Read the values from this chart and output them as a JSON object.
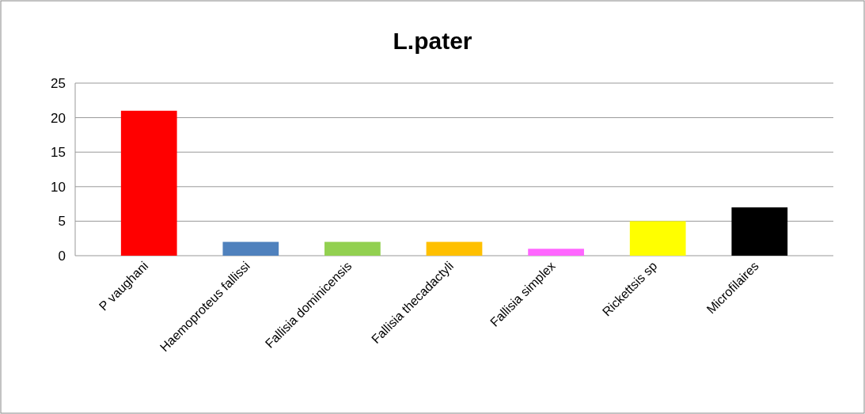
{
  "chart_data": {
    "type": "bar",
    "title": "L.pater",
    "categories": [
      "P vaughani",
      "Haemoproteus fallissi",
      "Fallisia dominicensis",
      "Fallisia thecadactyli",
      "Fallisia simplex",
      "Rickettsis sp",
      "Microfilaires"
    ],
    "values": [
      21,
      2,
      2,
      2,
      1,
      5,
      7
    ],
    "colors": [
      "#ff0000",
      "#4f81bd",
      "#92d050",
      "#ffc000",
      "#ff66ff",
      "#ffff00",
      "#000000"
    ],
    "ylim": [
      0,
      25
    ],
    "yticks": [
      0,
      5,
      10,
      15,
      20,
      25
    ],
    "grid": "y"
  }
}
